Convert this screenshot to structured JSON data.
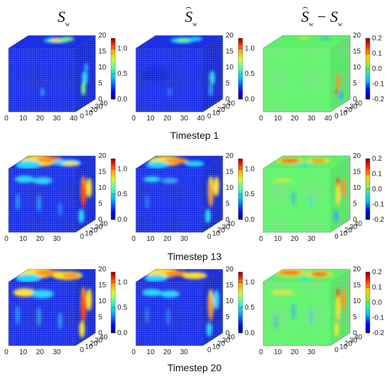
{
  "column_headers": [
    {
      "symbol": "S",
      "subscript": "w",
      "hat": false
    },
    {
      "symbol": "S",
      "subscript": "w",
      "hat": true
    },
    {
      "symbol_a": "S",
      "sub_a": "w",
      "minus": "−",
      "symbol_b": "S",
      "sub_b": "w"
    }
  ],
  "row_labels": [
    "Timestep 1",
    "Timestep 13",
    "Timestep 20"
  ],
  "colors": {
    "jet_low": "#00007f",
    "jet_high": "#7f0000",
    "diff_zero": "#60f070"
  },
  "chart_data": [
    {
      "type": "heatmap",
      "name": "Sw",
      "timestep": "Timestep 1",
      "x_ticks": [
        "0",
        "10",
        "20",
        "30",
        "40"
      ],
      "y_ticks": [
        "40",
        "30",
        "20",
        "10",
        "0"
      ],
      "z_ticks": [
        "0",
        "5",
        "10",
        "15",
        "20"
      ],
      "colorbar_ticks": [
        "0.0",
        "0.5",
        "1.0"
      ],
      "clim": [
        0,
        1.2
      ]
    },
    {
      "type": "heatmap",
      "name": "Sw_hat",
      "timestep": "Timestep 1",
      "x_ticks": [
        "0",
        "10",
        "20",
        "30",
        "40"
      ],
      "y_ticks": [
        "40",
        "30",
        "20",
        "10",
        "0"
      ],
      "z_ticks": [
        "0",
        "5",
        "10",
        "15",
        "20"
      ],
      "colorbar_ticks": [
        "0.0",
        "0.5",
        "1.0"
      ],
      "clim": [
        0,
        1.2
      ]
    },
    {
      "type": "heatmap",
      "name": "Sw_hat-Sw",
      "timestep": "Timestep 1",
      "x_ticks": [
        "0",
        "10",
        "20",
        "30",
        "40"
      ],
      "y_ticks": [
        "40",
        "30",
        "20",
        "10",
        "0"
      ],
      "z_ticks": [
        "0",
        "5",
        "10",
        "15",
        "20"
      ],
      "colorbar_ticks": [
        "-0.2",
        "-0.1",
        "0.0",
        "0.1",
        "0.2"
      ],
      "clim": [
        -0.2,
        0.2
      ]
    },
    {
      "type": "heatmap",
      "name": "Sw",
      "timestep": "Timestep 13",
      "x_ticks": [
        "0",
        "10",
        "20",
        "30"
      ],
      "y_ticks": [
        "40",
        "30",
        "20",
        "10",
        "0"
      ],
      "z_ticks": [
        "0",
        "5",
        "10",
        "15",
        "20"
      ],
      "colorbar_ticks": [
        "0.0",
        "0.5",
        "1.0"
      ],
      "clim": [
        0,
        1.2
      ]
    },
    {
      "type": "heatmap",
      "name": "Sw_hat",
      "timestep": "Timestep 13",
      "x_ticks": [
        "0",
        "10",
        "20",
        "30"
      ],
      "y_ticks": [
        "40",
        "30",
        "20",
        "10",
        "0"
      ],
      "z_ticks": [
        "0",
        "5",
        "10",
        "15",
        "20"
      ],
      "colorbar_ticks": [
        "0.0",
        "0.5",
        "1.0"
      ],
      "clim": [
        0,
        1.2
      ]
    },
    {
      "type": "heatmap",
      "name": "Sw_hat-Sw",
      "timestep": "Timestep 13",
      "x_ticks": [
        "0",
        "10",
        "20",
        "30"
      ],
      "y_ticks": [
        "40",
        "30",
        "20",
        "10",
        "0"
      ],
      "z_ticks": [
        "0",
        "5",
        "10",
        "15",
        "20"
      ],
      "colorbar_ticks": [
        "-0.2",
        "-0.1",
        "0.0",
        "0.1",
        "0.2"
      ],
      "clim": [
        -0.2,
        0.2
      ]
    },
    {
      "type": "heatmap",
      "name": "Sw",
      "timestep": "Timestep 20",
      "x_ticks": [
        "0",
        "10",
        "20",
        "30"
      ],
      "y_ticks": [
        "40",
        "30",
        "20",
        "10",
        "0"
      ],
      "z_ticks": [
        "0",
        "5",
        "10",
        "15",
        "20"
      ],
      "colorbar_ticks": [
        "0.0",
        "0.5",
        "1.0"
      ],
      "clim": [
        0,
        1.2
      ]
    },
    {
      "type": "heatmap",
      "name": "Sw_hat",
      "timestep": "Timestep 20",
      "x_ticks": [
        "0",
        "10",
        "20",
        "30"
      ],
      "y_ticks": [
        "40",
        "30",
        "20",
        "10",
        "0"
      ],
      "z_ticks": [
        "0",
        "5",
        "10",
        "15",
        "20"
      ],
      "colorbar_ticks": [
        "0.0",
        "0.5",
        "1.0"
      ],
      "clim": [
        0,
        1.2
      ]
    },
    {
      "type": "heatmap",
      "name": "Sw_hat-Sw",
      "timestep": "Timestep 20",
      "x_ticks": [
        "0",
        "10",
        "20",
        "30"
      ],
      "y_ticks": [
        "40",
        "30",
        "20",
        "10",
        "0"
      ],
      "z_ticks": [
        "0",
        "5",
        "10",
        "15",
        "20"
      ],
      "colorbar_ticks": [
        "-0.2",
        "-0.1",
        "0.0",
        "0.1",
        "0.2"
      ],
      "clim": [
        -0.2,
        0.2
      ]
    }
  ]
}
